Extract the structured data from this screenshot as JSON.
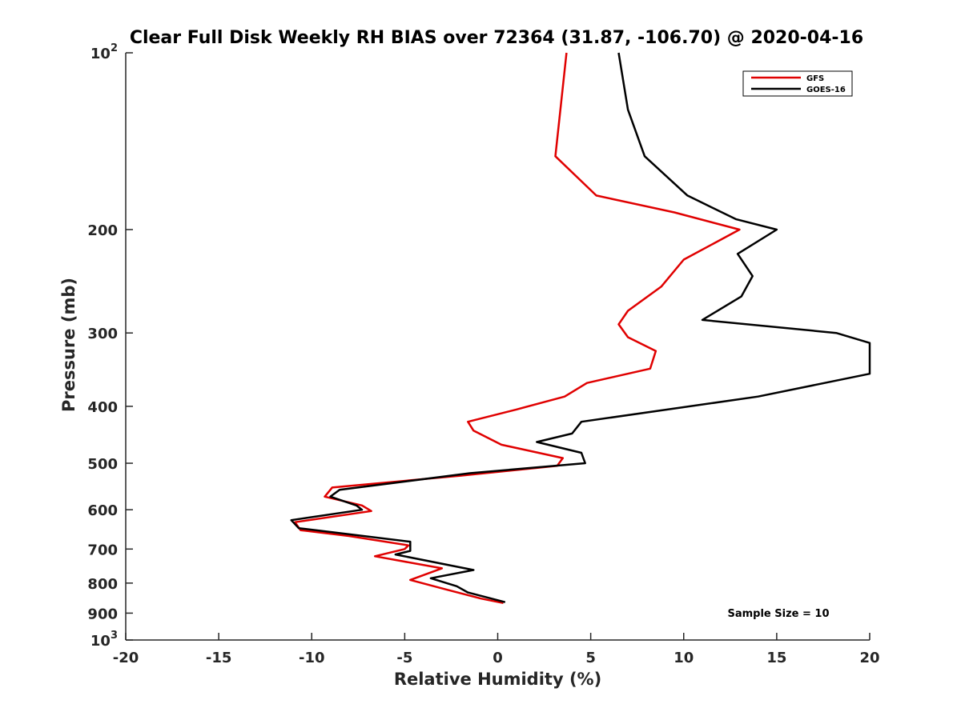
{
  "chart_data": {
    "type": "line",
    "title": "Clear Full Disk Weekly RH BIAS over 72364 (31.87, -106.70) @ 2020-04-16",
    "xlabel": "Relative Humidity (%)",
    "ylabel": "Pressure (mb)",
    "xlim": [
      -20,
      20
    ],
    "ylim": [
      100,
      1000
    ],
    "y_scale": "log",
    "y_reversed": true,
    "grid": false,
    "legend_position": "top-right",
    "x_ticks": [
      -20,
      -15,
      -10,
      -5,
      0,
      5,
      10,
      15,
      20
    ],
    "x_tick_labels": [
      "-20",
      "-15",
      "-10",
      "-5",
      "0",
      "5",
      "10",
      "15",
      "20"
    ],
    "y_ticks": [
      100,
      200,
      300,
      400,
      500,
      600,
      700,
      800,
      900,
      1000
    ],
    "y_tick_labels": [
      {
        "base": "10",
        "exp": "2"
      },
      {
        "base": "200",
        "exp": ""
      },
      {
        "base": "300",
        "exp": ""
      },
      {
        "base": "400",
        "exp": ""
      },
      {
        "base": "500",
        "exp": ""
      },
      {
        "base": "600",
        "exp": ""
      },
      {
        "base": "700",
        "exp": ""
      },
      {
        "base": "800",
        "exp": ""
      },
      {
        "base": "900",
        "exp": ""
      },
      {
        "base": "10",
        "exp": "3"
      }
    ],
    "series": [
      {
        "name": "GFS",
        "color": "#e00000",
        "points": [
          {
            "x": 3.7,
            "y": 100
          },
          {
            "x": 3.1,
            "y": 150
          },
          {
            "x": 5.3,
            "y": 175
          },
          {
            "x": 9.5,
            "y": 187
          },
          {
            "x": 13.0,
            "y": 200
          },
          {
            "x": 10.0,
            "y": 225
          },
          {
            "x": 8.8,
            "y": 250
          },
          {
            "x": 7.0,
            "y": 275
          },
          {
            "x": 6.5,
            "y": 290
          },
          {
            "x": 7.0,
            "y": 305
          },
          {
            "x": 8.5,
            "y": 322
          },
          {
            "x": 8.2,
            "y": 345
          },
          {
            "x": 4.8,
            "y": 365
          },
          {
            "x": 3.6,
            "y": 385
          },
          {
            "x": 1.0,
            "y": 405
          },
          {
            "x": -1.6,
            "y": 425
          },
          {
            "x": -1.3,
            "y": 440
          },
          {
            "x": 0.2,
            "y": 465
          },
          {
            "x": 3.5,
            "y": 490
          },
          {
            "x": 3.2,
            "y": 505
          },
          {
            "x": -2.0,
            "y": 525
          },
          {
            "x": -8.9,
            "y": 550
          },
          {
            "x": -9.3,
            "y": 570
          },
          {
            "x": -7.3,
            "y": 590
          },
          {
            "x": -6.8,
            "y": 603
          },
          {
            "x": -10.9,
            "y": 630
          },
          {
            "x": -10.6,
            "y": 650
          },
          {
            "x": -8.0,
            "y": 665
          },
          {
            "x": -4.8,
            "y": 690
          },
          {
            "x": -5.0,
            "y": 700
          },
          {
            "x": -6.6,
            "y": 720
          },
          {
            "x": -3.0,
            "y": 755
          },
          {
            "x": -4.7,
            "y": 790
          },
          {
            "x": -2.8,
            "y": 820
          },
          {
            "x": -0.9,
            "y": 850
          },
          {
            "x": 0.3,
            "y": 865
          }
        ]
      },
      {
        "name": "GOES-16",
        "color": "#000000",
        "points": [
          {
            "x": 6.5,
            "y": 100
          },
          {
            "x": 7.0,
            "y": 125
          },
          {
            "x": 7.9,
            "y": 150
          },
          {
            "x": 10.2,
            "y": 175
          },
          {
            "x": 12.8,
            "y": 192
          },
          {
            "x": 15.0,
            "y": 200
          },
          {
            "x": 12.9,
            "y": 220
          },
          {
            "x": 13.7,
            "y": 240
          },
          {
            "x": 13.1,
            "y": 260
          },
          {
            "x": 11.0,
            "y": 285
          },
          {
            "x": 18.2,
            "y": 300
          },
          {
            "x": 20.0,
            "y": 312
          },
          {
            "x": 20.0,
            "y": 352
          },
          {
            "x": 14.0,
            "y": 385
          },
          {
            "x": 4.5,
            "y": 425
          },
          {
            "x": 4.0,
            "y": 445
          },
          {
            "x": 2.1,
            "y": 460
          },
          {
            "x": 4.5,
            "y": 480
          },
          {
            "x": 4.7,
            "y": 500
          },
          {
            "x": -1.5,
            "y": 520
          },
          {
            "x": -8.5,
            "y": 555
          },
          {
            "x": -9.0,
            "y": 570
          },
          {
            "x": -7.6,
            "y": 590
          },
          {
            "x": -7.3,
            "y": 600
          },
          {
            "x": -11.1,
            "y": 625
          },
          {
            "x": -10.7,
            "y": 645
          },
          {
            "x": -8.1,
            "y": 660
          },
          {
            "x": -4.7,
            "y": 680
          },
          {
            "x": -4.7,
            "y": 705
          },
          {
            "x": -5.5,
            "y": 715
          },
          {
            "x": -1.3,
            "y": 760
          },
          {
            "x": -3.6,
            "y": 785
          },
          {
            "x": -2.2,
            "y": 810
          },
          {
            "x": -1.6,
            "y": 830
          },
          {
            "x": 0.4,
            "y": 862
          }
        ]
      }
    ],
    "annotations": [
      {
        "text": "Sample Size = 10"
      }
    ]
  }
}
